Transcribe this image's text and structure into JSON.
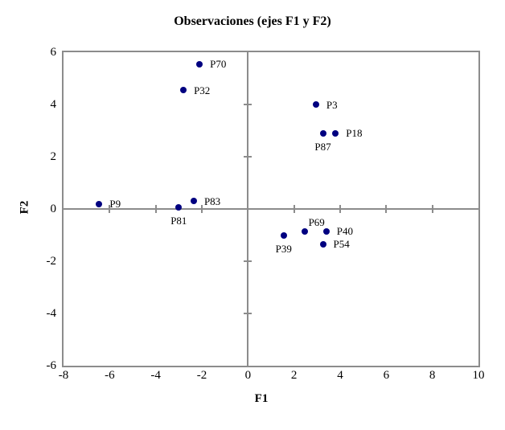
{
  "figure": {
    "background": "#ffffff"
  },
  "chart_data": {
    "type": "scatter",
    "title": "Observaciones (ejes F1 y F2)",
    "xlabel": "F1",
    "ylabel": "F2",
    "xlim": [
      -8,
      10
    ],
    "ylim": [
      -6,
      6
    ],
    "x_ticks": [
      -8,
      -6,
      -4,
      -2,
      0,
      2,
      4,
      6,
      8,
      10
    ],
    "y_ticks": [
      -6,
      -4,
      -2,
      0,
      2,
      4,
      6
    ],
    "grid": false,
    "legend_position": "none",
    "marker_color": "#000080",
    "axis_color": "#8c8c8c",
    "text_color": "#000000",
    "axis_cross_ticks": {
      "x": [
        -6,
        -4,
        -2,
        2,
        4,
        6,
        8
      ],
      "y": [
        -4,
        -2,
        2,
        4
      ]
    },
    "points": [
      {
        "label": "P70",
        "x": -2.1,
        "y": 5.55,
        "label_pos": "right"
      },
      {
        "label": "P32",
        "x": -2.8,
        "y": 4.55,
        "label_pos": "right"
      },
      {
        "label": "P3",
        "x": 2.95,
        "y": 4.0,
        "label_pos": "right"
      },
      {
        "label": "P87",
        "x": 3.25,
        "y": 2.9,
        "label_pos": "below"
      },
      {
        "label": "P18",
        "x": 3.8,
        "y": 2.9,
        "label_pos": "right"
      },
      {
        "label": "P9",
        "x": -6.45,
        "y": 0.2,
        "label_pos": "right"
      },
      {
        "label": "P83",
        "x": -2.35,
        "y": 0.3,
        "label_pos": "right"
      },
      {
        "label": "P81",
        "x": -3.0,
        "y": 0.05,
        "label_pos": "below"
      },
      {
        "label": "P69",
        "x": 2.45,
        "y": -0.85,
        "label_pos": "above-right"
      },
      {
        "label": "P40",
        "x": 3.4,
        "y": -0.85,
        "label_pos": "right"
      },
      {
        "label": "P39",
        "x": 1.55,
        "y": -1.0,
        "label_pos": "below"
      },
      {
        "label": "P54",
        "x": 3.25,
        "y": -1.35,
        "label_pos": "right"
      }
    ]
  }
}
